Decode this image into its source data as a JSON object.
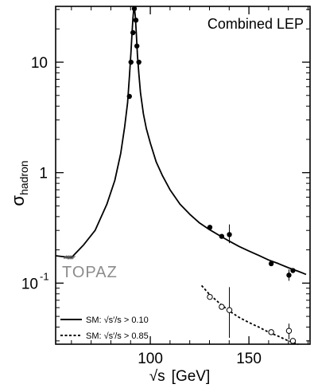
{
  "chart_data": {
    "type": "scatter",
    "title": "Combined LEP",
    "xlabel_symbol": "√s",
    "xlabel_unit": "[GeV]",
    "ylabel_main": "σ",
    "ylabel_sub": "hadron",
    "xlim": [
      52,
      181
    ],
    "ylim": [
      0.028,
      32
    ],
    "yscale": "log",
    "grid": false,
    "x_ticks": [
      {
        "value": 100,
        "label": "100"
      },
      {
        "value": 150,
        "label": "150"
      }
    ],
    "y_ticks": [
      {
        "value": 10,
        "label": "10"
      },
      {
        "value": 1,
        "label": "1"
      },
      {
        "value": 0.1,
        "label": "10",
        "exp": "-1"
      }
    ],
    "legend_position": "bottom-left",
    "legend": [
      {
        "style": "solid",
        "label_prefix": "SM: ",
        "label_expr": "√s′/s",
        "label_suffix": " > 0.10"
      },
      {
        "style": "dashed",
        "label_prefix": "SM: ",
        "label_expr": "√s′/s",
        "label_suffix": " > 0.85"
      }
    ],
    "annotation": "TOPAZ",
    "series": [
      {
        "marker": "filled-circle",
        "points": [
          {
            "x": 89.4,
            "y": 4.9
          },
          {
            "x": 90.2,
            "y": 10.0
          },
          {
            "x": 91.2,
            "y": 18.5
          },
          {
            "x": 91.9,
            "y": 30.5
          },
          {
            "x": 92.7,
            "y": 24.0
          },
          {
            "x": 93.2,
            "y": 14.0
          },
          {
            "x": 94.2,
            "y": 10.0
          },
          {
            "x": 130.2,
            "y": 0.32
          },
          {
            "x": 136.2,
            "y": 0.265
          },
          {
            "x": 140.1,
            "y": 0.275,
            "err": [
              0.23,
              0.34
            ]
          },
          {
            "x": 161.3,
            "y": 0.15
          },
          {
            "x": 170.3,
            "y": 0.118,
            "err": [
              0.105,
              0.133
            ]
          },
          {
            "x": 172.3,
            "y": 0.13
          }
        ]
      },
      {
        "marker": "open-circle",
        "points": [
          {
            "x": 130.2,
            "y": 0.075
          },
          {
            "x": 136.2,
            "y": 0.061
          },
          {
            "x": 140.1,
            "y": 0.057,
            "err": [
              0.032,
              0.092
            ]
          },
          {
            "x": 161.3,
            "y": 0.036
          },
          {
            "x": 170.3,
            "y": 0.037,
            "err": [
              0.031,
              0.043
            ]
          },
          {
            "x": 172.3,
            "y": 0.03
          }
        ]
      },
      {
        "marker": "cross-hatch",
        "points": [
          {
            "x": 58.0,
            "y": 0.172
          },
          {
            "x": 60.0,
            "y": 0.17
          }
        ]
      }
    ],
    "curves": [
      {
        "style": "solid",
        "points": [
          [
            52,
            0.177
          ],
          [
            60,
            0.17
          ],
          [
            66,
            0.22
          ],
          [
            72,
            0.3
          ],
          [
            78,
            0.52
          ],
          [
            82,
            0.85
          ],
          [
            85,
            1.5
          ],
          [
            87,
            2.6
          ],
          [
            88.5,
            4.3
          ],
          [
            89.5,
            7.8
          ],
          [
            90.2,
            12.5
          ],
          [
            90.8,
            19.0
          ],
          [
            91.2,
            25.0
          ],
          [
            91.5,
            29.0
          ],
          [
            91.8,
            31.0
          ],
          [
            92.0,
            30.5
          ],
          [
            92.4,
            26.0
          ],
          [
            92.9,
            18.0
          ],
          [
            93.5,
            11.5
          ],
          [
            94.2,
            7.8
          ],
          [
            95,
            5.3
          ],
          [
            96.5,
            3.4
          ],
          [
            98,
            2.5
          ],
          [
            100,
            1.85
          ],
          [
            103,
            1.25
          ],
          [
            106,
            0.95
          ],
          [
            110,
            0.7
          ],
          [
            115,
            0.52
          ],
          [
            120,
            0.42
          ],
          [
            125,
            0.35
          ],
          [
            130,
            0.305
          ],
          [
            135,
            0.27
          ],
          [
            140,
            0.24
          ],
          [
            145,
            0.215
          ],
          [
            150,
            0.195
          ],
          [
            155,
            0.178
          ],
          [
            160,
            0.162
          ],
          [
            165,
            0.15
          ],
          [
            170,
            0.138
          ],
          [
            175,
            0.128
          ],
          [
            179,
            0.12
          ]
        ]
      },
      {
        "style": "dashed",
        "points": [
          [
            126,
            0.095
          ],
          [
            130,
            0.079
          ],
          [
            135,
            0.066
          ],
          [
            140,
            0.056
          ],
          [
            145,
            0.049
          ],
          [
            150,
            0.044
          ],
          [
            155,
            0.04
          ],
          [
            160,
            0.036
          ],
          [
            165,
            0.033
          ],
          [
            170,
            0.03
          ],
          [
            175,
            0.028
          ]
        ]
      }
    ]
  }
}
